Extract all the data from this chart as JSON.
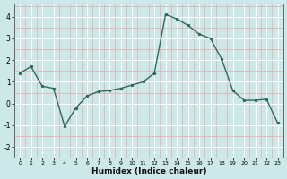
{
  "x": [
    0,
    1,
    2,
    3,
    4,
    5,
    6,
    7,
    8,
    9,
    10,
    11,
    12,
    13,
    14,
    15,
    16,
    17,
    18,
    19,
    20,
    21,
    22,
    23
  ],
  "y": [
    1.4,
    1.7,
    0.8,
    0.7,
    -1.05,
    -0.2,
    0.35,
    0.55,
    0.6,
    0.7,
    0.85,
    1.0,
    1.4,
    4.1,
    3.9,
    3.6,
    3.2,
    3.0,
    2.05,
    0.6,
    0.15,
    0.15,
    0.2,
    -0.9
  ],
  "line_color": "#2e6b5e",
  "marker": "o",
  "marker_size": 2.5,
  "bg_color": "#cce8e8",
  "grid_major_color": "#ffffff",
  "grid_minor_color": "#e8aaaa",
  "xlabel": "Humidex (Indice chaleur)",
  "ylim": [
    -2.5,
    4.6
  ],
  "xlim": [
    -0.5,
    23.5
  ],
  "yticks": [
    -2,
    -1,
    0,
    1,
    2,
    3,
    4
  ],
  "xticks": [
    0,
    1,
    2,
    3,
    4,
    5,
    6,
    7,
    8,
    9,
    10,
    11,
    12,
    13,
    14,
    15,
    16,
    17,
    18,
    19,
    20,
    21,
    22,
    23
  ]
}
